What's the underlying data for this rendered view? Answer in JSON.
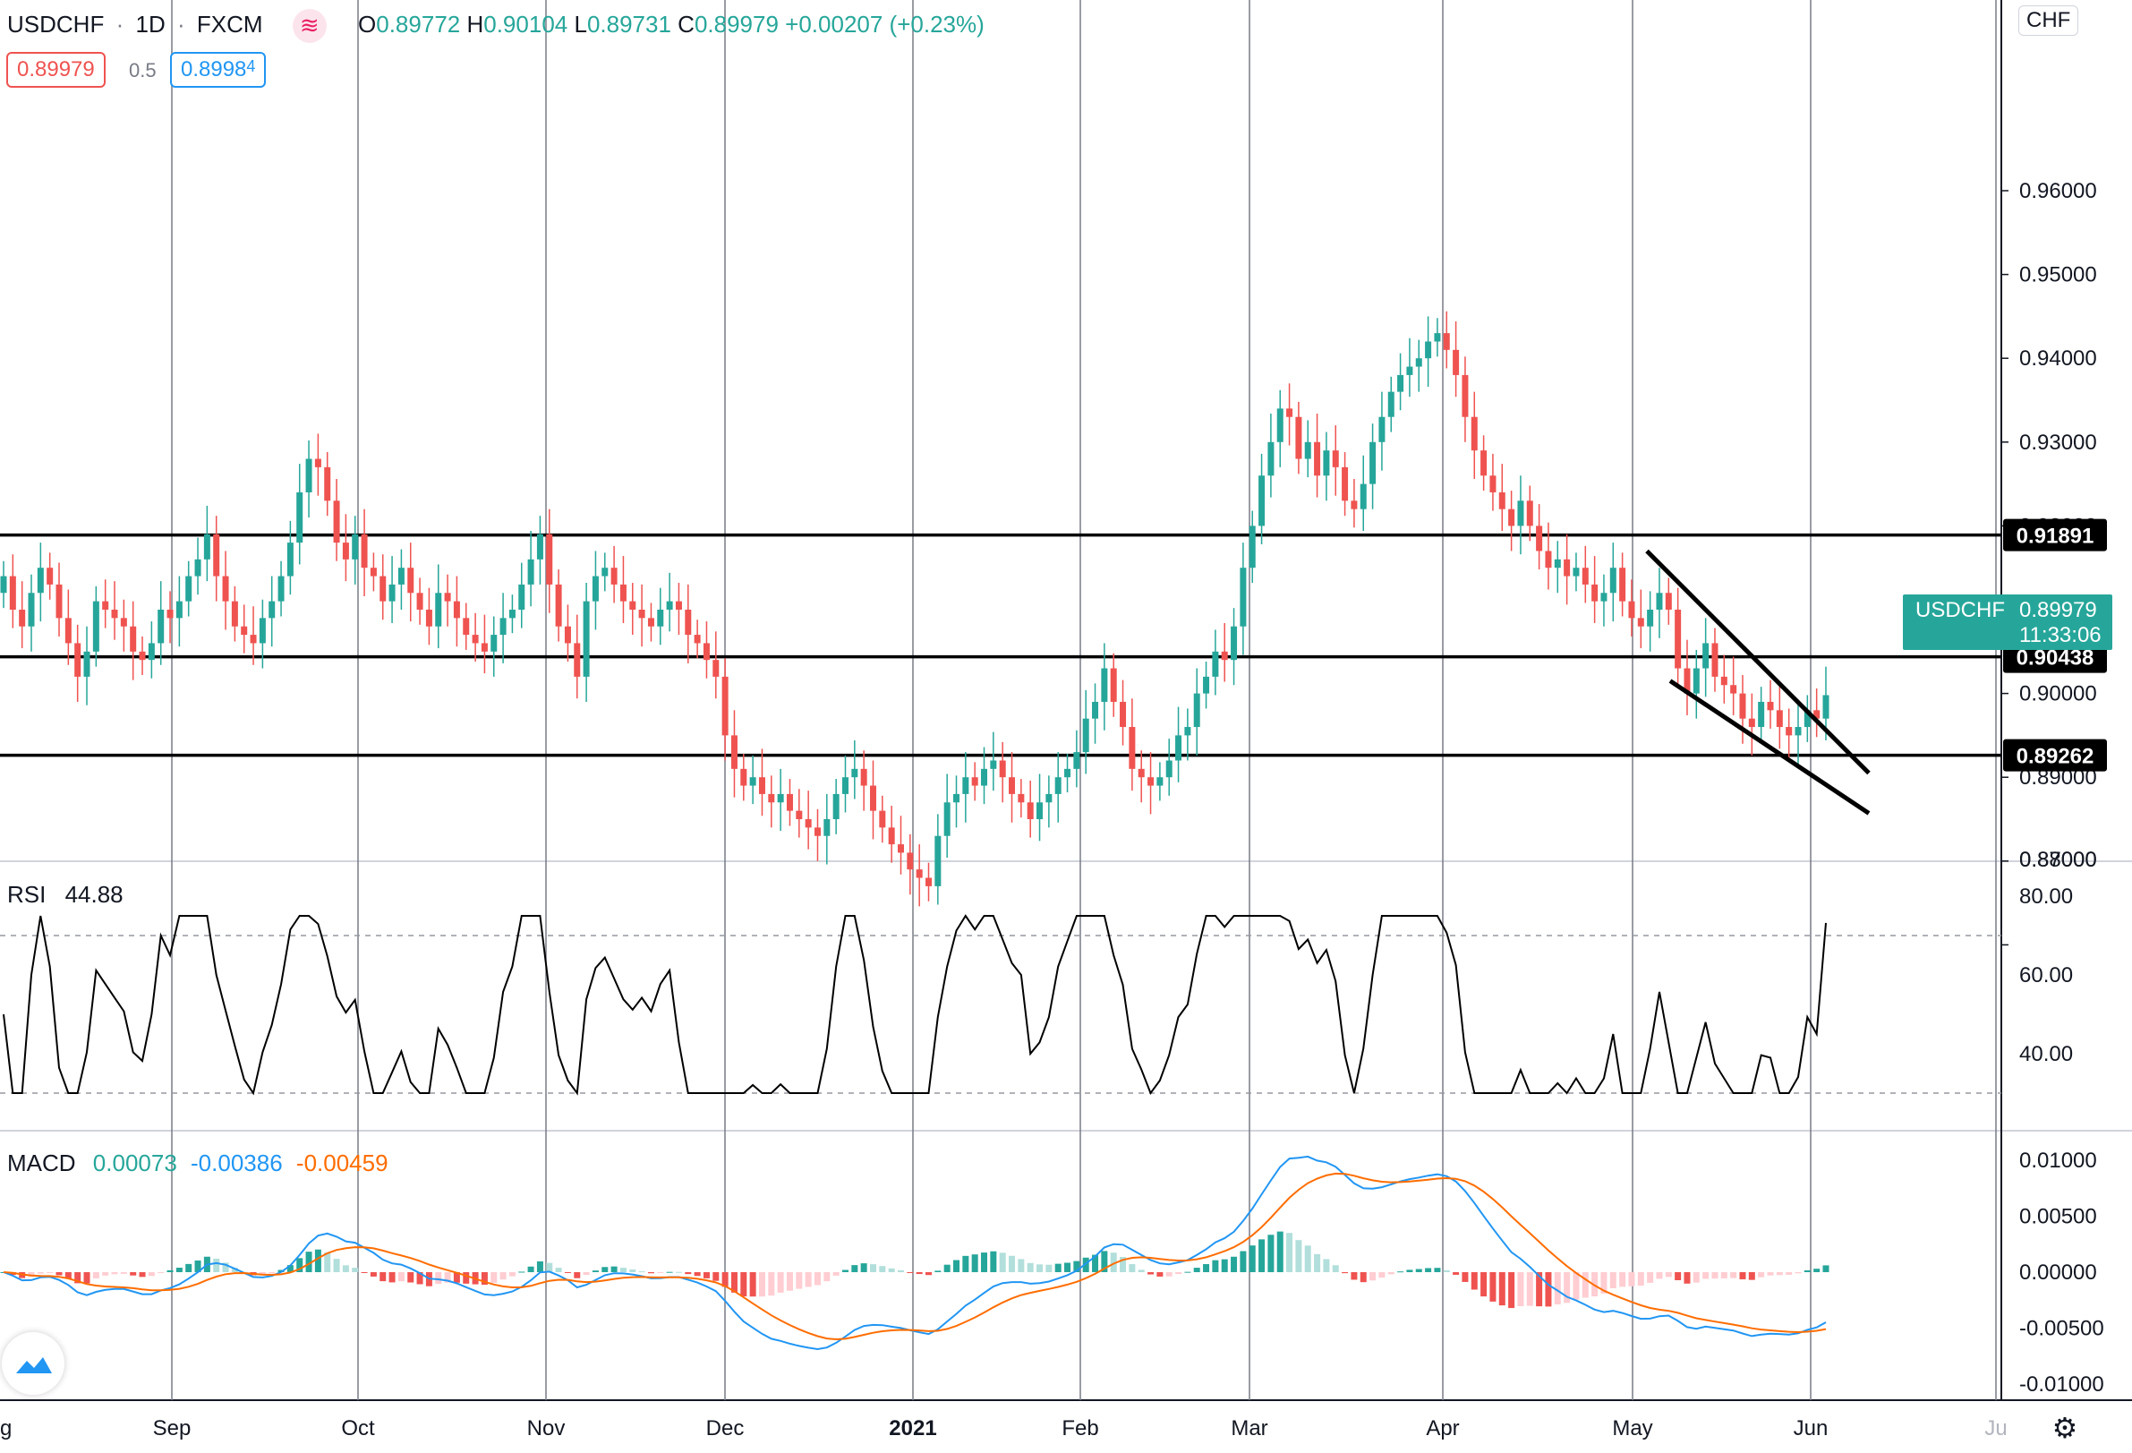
{
  "header": {
    "symbol": "USDCHF",
    "interval": "1D",
    "exchange": "FXCM",
    "ohlc": {
      "o_label": "O",
      "o": "0.89772",
      "h_label": "H",
      "h": "0.90104",
      "l_label": "L",
      "l": "0.89731",
      "c_label": "C",
      "c": "0.89979",
      "change": "+0.00207 (+0.23%)"
    },
    "bid": "0.89979",
    "spread": "0.5",
    "ask": "0.8998",
    "ask_small": "4",
    "currency": "CHF"
  },
  "price_axis": {
    "ticks": [
      "0.87000",
      "0.88000",
      "0.89000",
      "0.90000",
      "0.91000",
      "0.92000",
      "0.93000",
      "0.94000",
      "0.95000",
      "0.96000"
    ],
    "top_partial": "0.",
    "levels": [
      "0.91891",
      "0.90438",
      "0.89262"
    ],
    "last_symbol": "USDCHF",
    "last_price": "0.89979",
    "countdown": "11:33:06"
  },
  "time_axis": [
    "g",
    "Sep",
    "Oct",
    "Nov",
    "Dec",
    "2021",
    "Feb",
    "Mar",
    "Apr",
    "May",
    "Jun",
    "Ju"
  ],
  "rsi": {
    "label": "RSI",
    "value": "44.88",
    "ticks": [
      "80.00",
      "60.00",
      "40.00"
    ]
  },
  "macd": {
    "label": "MACD",
    "hist": "0.00073",
    "macd": "-0.00386",
    "signal": "-0.00459",
    "ticks": [
      "0.01000",
      "0.00500",
      "0.00000",
      "-0.00500",
      "-0.01000"
    ]
  },
  "colors": {
    "up": "#26a69a",
    "down": "#ef5350",
    "up_hist": "#26a69a",
    "up_hist_light": "#b2dfdb",
    "down_hist": "#ef5350",
    "down_hist_light": "#ffcdd2",
    "macd_line": "#2196f3",
    "signal_line": "#ff6d00",
    "rsi_line": "#000000",
    "grid": "#787b86"
  },
  "chart_data": {
    "type": "candlestick",
    "symbol": "USDCHF",
    "interval": "1D",
    "date_range": [
      "2020-08",
      "2021-06"
    ],
    "horizontal_levels": [
      0.91891,
      0.90438,
      0.89262
    ],
    "trendlines": [
      {
        "from": [
          "2021-05-01",
          0.917
        ],
        "to": [
          "2021-06-10",
          0.8905
        ]
      },
      {
        "from": [
          "2021-05-06",
          0.9015
        ],
        "to": [
          "2021-06-10",
          0.8857
        ]
      }
    ],
    "closes": [
      0.914,
      0.91,
      0.908,
      0.912,
      0.915,
      0.913,
      0.909,
      0.906,
      0.902,
      0.905,
      0.911,
      0.91,
      0.909,
      0.908,
      0.905,
      0.904,
      0.906,
      0.91,
      0.909,
      0.911,
      0.914,
      0.916,
      0.919,
      0.914,
      0.911,
      0.908,
      0.907,
      0.906,
      0.909,
      0.911,
      0.914,
      0.918,
      0.924,
      0.928,
      0.927,
      0.923,
      0.918,
      0.916,
      0.919,
      0.915,
      0.914,
      0.911,
      0.913,
      0.915,
      0.912,
      0.91,
      0.908,
      0.912,
      0.911,
      0.909,
      0.907,
      0.906,
      0.905,
      0.907,
      0.909,
      0.91,
      0.913,
      0.916,
      0.919,
      0.913,
      0.908,
      0.906,
      0.902,
      0.911,
      0.914,
      0.915,
      0.913,
      0.911,
      0.91,
      0.909,
      0.908,
      0.91,
      0.911,
      0.91,
      0.907,
      0.906,
      0.904,
      0.902,
      0.895,
      0.891,
      0.889,
      0.89,
      0.888,
      0.887,
      0.888,
      0.886,
      0.885,
      0.884,
      0.883,
      0.885,
      0.888,
      0.89,
      0.891,
      0.889,
      0.886,
      0.884,
      0.882,
      0.881,
      0.879,
      0.878,
      0.877,
      0.883,
      0.887,
      0.888,
      0.89,
      0.889,
      0.891,
      0.892,
      0.89,
      0.888,
      0.887,
      0.885,
      0.887,
      0.888,
      0.89,
      0.891,
      0.893,
      0.897,
      0.899,
      0.903,
      0.899,
      0.896,
      0.891,
      0.89,
      0.889,
      0.89,
      0.892,
      0.895,
      0.896,
      0.9,
      0.902,
      0.905,
      0.904,
      0.908,
      0.915,
      0.92,
      0.926,
      0.93,
      0.934,
      0.933,
      0.928,
      0.93,
      0.926,
      0.929,
      0.927,
      0.923,
      0.922,
      0.925,
      0.93,
      0.933,
      0.936,
      0.938,
      0.939,
      0.94,
      0.942,
      0.943,
      0.941,
      0.938,
      0.933,
      0.929,
      0.926,
      0.924,
      0.922,
      0.92,
      0.923,
      0.92,
      0.917,
      0.915,
      0.916,
      0.914,
      0.915,
      0.913,
      0.911,
      0.912,
      0.915,
      0.911,
      0.909,
      0.908,
      0.91,
      0.912,
      0.91,
      0.903,
      0.9,
      0.903,
      0.906,
      0.902,
      0.901,
      0.9,
      0.897,
      0.896,
      0.899,
      0.898,
      0.896,
      0.895,
      0.896,
      0.898,
      0.897,
      0.8998
    ]
  }
}
